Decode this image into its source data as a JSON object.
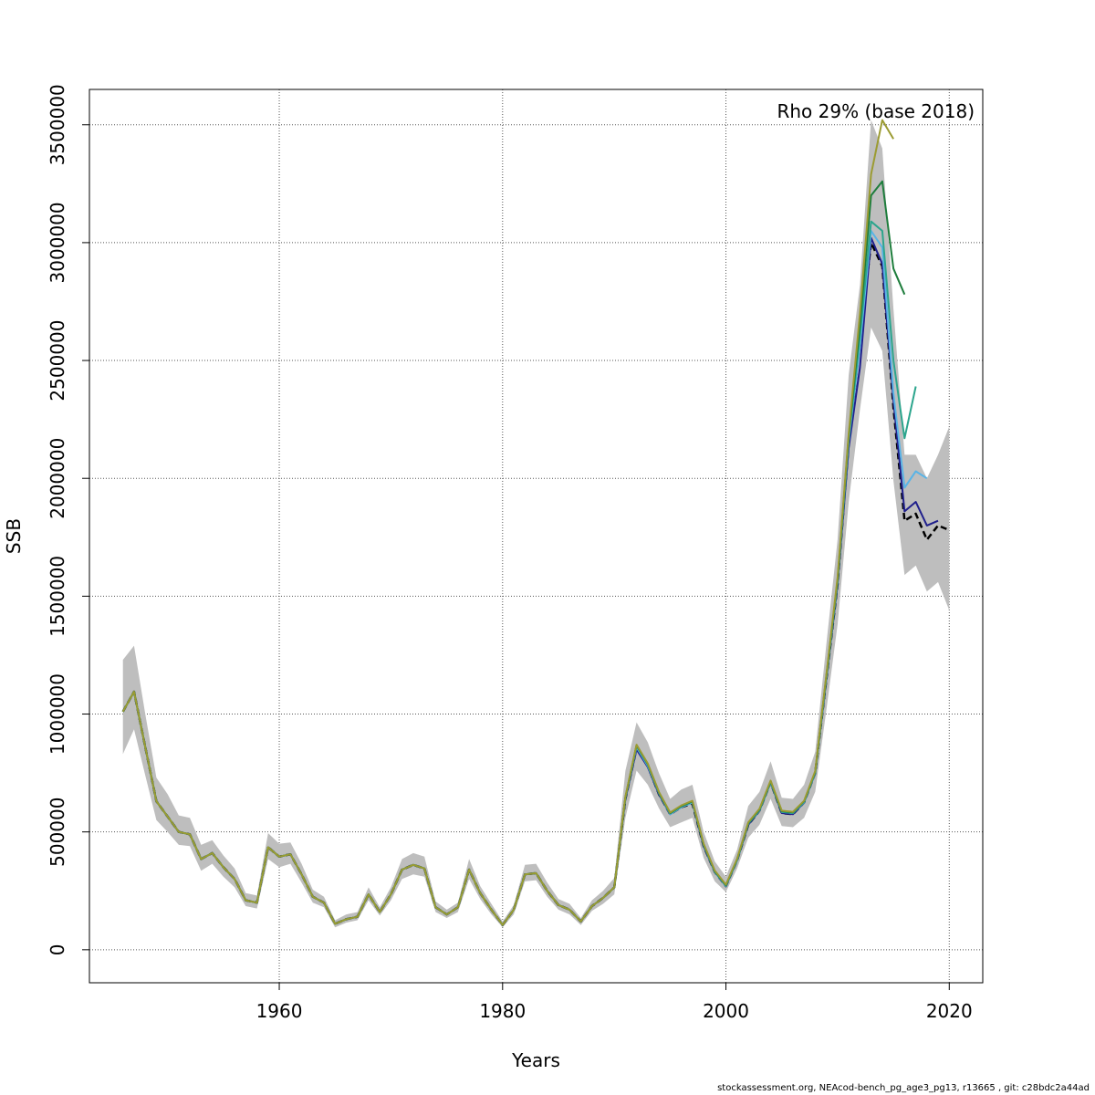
{
  "chart_data": {
    "type": "line",
    "title": "",
    "xlabel": "Years",
    "ylabel": "SSB",
    "annotation": "Rho 29% (base 2018)",
    "xlim": [
      1943,
      2023
    ],
    "ylim": [
      -140000,
      3650000
    ],
    "x_ticks": [
      1960,
      1980,
      2000,
      2020
    ],
    "y_ticks": [
      0,
      500000,
      1000000,
      1500000,
      2000000,
      2500000,
      3000000,
      3500000
    ],
    "grid": true,
    "colors": {
      "band": "#bebebe",
      "base": "#000000",
      "peels": [
        "#1f1f8c",
        "#5ab4e6",
        "#2ca58d",
        "#1e7d3c",
        "#9b9b32"
      ]
    },
    "series": [
      {
        "x": [
          1946,
          1947,
          1948,
          1949,
          1950,
          1951,
          1952,
          1953,
          1954,
          1955,
          1956,
          1957,
          1958,
          1959,
          1960,
          1961,
          1962,
          1963,
          1964,
          1965,
          1966,
          1967,
          1968,
          1969,
          1970,
          1971,
          1972,
          1973,
          1974,
          1975,
          1976,
          1977,
          1978,
          1979,
          1980,
          1981,
          1982,
          1983,
          1984,
          1985,
          1986,
          1987,
          1988,
          1989,
          1990,
          1991,
          1992,
          1993,
          1994,
          1995,
          1996,
          1997,
          1998,
          1999,
          2000,
          2001,
          2002,
          2003,
          2004,
          2005,
          2006,
          2007,
          2008,
          2009,
          2010,
          2011,
          2012,
          2013,
          2014,
          2015,
          2016,
          2017,
          2018,
          2019,
          2020
        ],
        "values": [
          1010000,
          1095000,
          860000,
          630000,
          565000,
          500000,
          490000,
          385000,
          410000,
          350000,
          300000,
          210000,
          200000,
          435000,
          395000,
          405000,
          320000,
          225000,
          200000,
          110000,
          130000,
          140000,
          235000,
          160000,
          235000,
          340000,
          360000,
          345000,
          180000,
          150000,
          180000,
          340000,
          240000,
          170000,
          105000,
          170000,
          320000,
          325000,
          250000,
          190000,
          170000,
          120000,
          185000,
          220000,
          265000,
          640000,
          855000,
          780000,
          660000,
          575000,
          605000,
          620000,
          440000,
          330000,
          270000,
          380000,
          530000,
          590000,
          710000,
          580000,
          575000,
          625000,
          750000,
          1150000,
          1550000,
          2150000,
          2580000,
          3000000,
          2900000,
          2300000,
          1820000,
          1850000,
          1740000,
          1800000,
          1780000
        ]
      },
      {
        "x": [
          1946,
          1947,
          1948,
          1949,
          1950,
          1951,
          1952,
          1953,
          1954,
          1955,
          1956,
          1957,
          1958,
          1959,
          1960,
          1961,
          1962,
          1963,
          1964,
          1965,
          1966,
          1967,
          1968,
          1969,
          1970,
          1971,
          1972,
          1973,
          1974,
          1975,
          1976,
          1977,
          1978,
          1979,
          1980,
          1981,
          1982,
          1983,
          1984,
          1985,
          1986,
          1987,
          1988,
          1989,
          1990,
          1991,
          1992,
          1993,
          1994,
          1995,
          1996,
          1997,
          1998,
          1999,
          2000,
          2001,
          2002,
          2003,
          2004,
          2005,
          2006,
          2007,
          2008,
          2009,
          2010,
          2011,
          2012,
          2013,
          2014,
          2015,
          2016,
          2017,
          2018,
          2019
        ],
        "values": [
          1010000,
          1095000,
          860000,
          630000,
          565000,
          500000,
          490000,
          385000,
          410000,
          350000,
          300000,
          210000,
          200000,
          435000,
          395000,
          405000,
          320000,
          225000,
          200000,
          110000,
          130000,
          140000,
          235000,
          160000,
          235000,
          340000,
          360000,
          345000,
          180000,
          150000,
          180000,
          340000,
          240000,
          170000,
          105000,
          170000,
          320000,
          325000,
          250000,
          190000,
          170000,
          120000,
          185000,
          220000,
          265000,
          640000,
          850000,
          775000,
          660000,
          575000,
          605000,
          625000,
          440000,
          330000,
          270000,
          380000,
          530000,
          590000,
          710000,
          580000,
          575000,
          625000,
          750000,
          1150000,
          1550000,
          2130000,
          2470000,
          3020000,
          2910000,
          2330000,
          1860000,
          1900000,
          1800000,
          1820000
        ]
      },
      {
        "x": [
          1946,
          1947,
          1948,
          1949,
          1950,
          1951,
          1952,
          1953,
          1954,
          1955,
          1956,
          1957,
          1958,
          1959,
          1960,
          1961,
          1962,
          1963,
          1964,
          1965,
          1966,
          1967,
          1968,
          1969,
          1970,
          1971,
          1972,
          1973,
          1974,
          1975,
          1976,
          1977,
          1978,
          1979,
          1980,
          1981,
          1982,
          1983,
          1984,
          1985,
          1986,
          1987,
          1988,
          1989,
          1990,
          1991,
          1992,
          1993,
          1994,
          1995,
          1996,
          1997,
          1998,
          1999,
          2000,
          2001,
          2002,
          2003,
          2004,
          2005,
          2006,
          2007,
          2008,
          2009,
          2010,
          2011,
          2012,
          2013,
          2014,
          2015,
          2016,
          2017,
          2018
        ],
        "values": [
          1010000,
          1095000,
          860000,
          630000,
          565000,
          500000,
          490000,
          385000,
          410000,
          350000,
          300000,
          210000,
          200000,
          435000,
          395000,
          405000,
          320000,
          225000,
          200000,
          110000,
          130000,
          140000,
          235000,
          160000,
          235000,
          340000,
          360000,
          345000,
          180000,
          150000,
          180000,
          340000,
          240000,
          170000,
          105000,
          170000,
          320000,
          325000,
          250000,
          190000,
          170000,
          120000,
          185000,
          220000,
          265000,
          645000,
          860000,
          780000,
          665000,
          575000,
          605000,
          625000,
          445000,
          330000,
          270000,
          380000,
          535000,
          590000,
          710000,
          585000,
          580000,
          625000,
          750000,
          1155000,
          1560000,
          2160000,
          2560000,
          3050000,
          2980000,
          2360000,
          1960000,
          2030000,
          2000000
        ]
      },
      {
        "x": [
          1946,
          1947,
          1948,
          1949,
          1950,
          1951,
          1952,
          1953,
          1954,
          1955,
          1956,
          1957,
          1958,
          1959,
          1960,
          1961,
          1962,
          1963,
          1964,
          1965,
          1966,
          1967,
          1968,
          1969,
          1970,
          1971,
          1972,
          1973,
          1974,
          1975,
          1976,
          1977,
          1978,
          1979,
          1980,
          1981,
          1982,
          1983,
          1984,
          1985,
          1986,
          1987,
          1988,
          1989,
          1990,
          1991,
          1992,
          1993,
          1994,
          1995,
          1996,
          1997,
          1998,
          1999,
          2000,
          2001,
          2002,
          2003,
          2004,
          2005,
          2006,
          2007,
          2008,
          2009,
          2010,
          2011,
          2012,
          2013,
          2014,
          2015,
          2016,
          2017
        ],
        "values": [
          1010000,
          1095000,
          860000,
          630000,
          565000,
          500000,
          490000,
          385000,
          410000,
          350000,
          300000,
          210000,
          200000,
          435000,
          395000,
          405000,
          320000,
          225000,
          200000,
          110000,
          130000,
          140000,
          235000,
          160000,
          235000,
          340000,
          360000,
          345000,
          180000,
          150000,
          180000,
          340000,
          240000,
          170000,
          105000,
          170000,
          320000,
          325000,
          250000,
          190000,
          170000,
          120000,
          185000,
          220000,
          265000,
          645000,
          865000,
          785000,
          665000,
          578000,
          608000,
          628000,
          445000,
          332000,
          272000,
          382000,
          535000,
          592000,
          712000,
          585000,
          580000,
          628000,
          752000,
          1160000,
          1565000,
          2170000,
          2600000,
          3090000,
          3050000,
          2500000,
          2170000,
          2390000
        ]
      },
      {
        "x": [
          1946,
          1947,
          1948,
          1949,
          1950,
          1951,
          1952,
          1953,
          1954,
          1955,
          1956,
          1957,
          1958,
          1959,
          1960,
          1961,
          1962,
          1963,
          1964,
          1965,
          1966,
          1967,
          1968,
          1969,
          1970,
          1971,
          1972,
          1973,
          1974,
          1975,
          1976,
          1977,
          1978,
          1979,
          1980,
          1981,
          1982,
          1983,
          1984,
          1985,
          1986,
          1987,
          1988,
          1989,
          1990,
          1991,
          1992,
          1993,
          1994,
          1995,
          1996,
          1997,
          1998,
          1999,
          2000,
          2001,
          2002,
          2003,
          2004,
          2005,
          2006,
          2007,
          2008,
          2009,
          2010,
          2011,
          2012,
          2013,
          2014,
          2015,
          2016
        ],
        "values": [
          1010000,
          1095000,
          860000,
          630000,
          565000,
          500000,
          490000,
          385000,
          410000,
          350000,
          300000,
          210000,
          200000,
          435000,
          395000,
          405000,
          320000,
          225000,
          200000,
          110000,
          130000,
          140000,
          235000,
          160000,
          235000,
          340000,
          360000,
          345000,
          180000,
          150000,
          180000,
          340000,
          240000,
          170000,
          105000,
          170000,
          320000,
          325000,
          250000,
          190000,
          170000,
          120000,
          185000,
          220000,
          265000,
          648000,
          868000,
          788000,
          668000,
          580000,
          610000,
          630000,
          448000,
          334000,
          274000,
          384000,
          538000,
          595000,
          715000,
          588000,
          583000,
          630000,
          755000,
          1165000,
          1570000,
          2180000,
          2650000,
          3200000,
          3260000,
          2890000,
          2780000
        ]
      },
      {
        "x": [
          1946,
          1947,
          1948,
          1949,
          1950,
          1951,
          1952,
          1953,
          1954,
          1955,
          1956,
          1957,
          1958,
          1959,
          1960,
          1961,
          1962,
          1963,
          1964,
          1965,
          1966,
          1967,
          1968,
          1969,
          1970,
          1971,
          1972,
          1973,
          1974,
          1975,
          1976,
          1977,
          1978,
          1979,
          1980,
          1981,
          1982,
          1983,
          1984,
          1985,
          1986,
          1987,
          1988,
          1989,
          1990,
          1991,
          1992,
          1993,
          1994,
          1995,
          1996,
          1997,
          1998,
          1999,
          2000,
          2001,
          2002,
          2003,
          2004,
          2005,
          2006,
          2007,
          2008,
          2009,
          2010,
          2011,
          2012,
          2013,
          2014,
          2015
        ],
        "values": [
          1010000,
          1095000,
          860000,
          630000,
          565000,
          500000,
          490000,
          385000,
          410000,
          350000,
          300000,
          210000,
          200000,
          435000,
          395000,
          405000,
          320000,
          225000,
          200000,
          110000,
          130000,
          140000,
          235000,
          160000,
          235000,
          340000,
          360000,
          345000,
          180000,
          150000,
          180000,
          340000,
          240000,
          170000,
          105000,
          170000,
          320000,
          325000,
          250000,
          190000,
          170000,
          120000,
          185000,
          220000,
          265000,
          650000,
          870000,
          790000,
          670000,
          582000,
          612000,
          632000,
          450000,
          336000,
          276000,
          386000,
          540000,
          598000,
          718000,
          590000,
          585000,
          632000,
          758000,
          1170000,
          1580000,
          2190000,
          2700000,
          3290000,
          3520000,
          3440000
        ]
      }
    ],
    "band": {
      "x": [
        1946,
        1947,
        1948,
        1949,
        1950,
        1951,
        1952,
        1953,
        1954,
        1955,
        1956,
        1957,
        1958,
        1959,
        1960,
        1961,
        1962,
        1963,
        1964,
        1965,
        1966,
        1967,
        1968,
        1969,
        1970,
        1971,
        1972,
        1973,
        1974,
        1975,
        1976,
        1977,
        1978,
        1979,
        1980,
        1981,
        1982,
        1983,
        1984,
        1985,
        1986,
        1987,
        1988,
        1989,
        1990,
        1991,
        1992,
        1993,
        1994,
        1995,
        1996,
        1997,
        1998,
        1999,
        2000,
        2001,
        2002,
        2003,
        2004,
        2005,
        2006,
        2007,
        2008,
        2009,
        2010,
        2011,
        2012,
        2013,
        2014,
        2015,
        2016,
        2017,
        2018,
        2019,
        2020
      ],
      "lower": [
        830000,
        935000,
        740000,
        550000,
        500000,
        445000,
        440000,
        335000,
        365000,
        310000,
        265000,
        185000,
        175000,
        385000,
        350000,
        365000,
        285000,
        200000,
        180000,
        95000,
        115000,
        125000,
        210000,
        145000,
        210000,
        300000,
        320000,
        310000,
        160000,
        135000,
        160000,
        300000,
        215000,
        150000,
        95000,
        150000,
        290000,
        295000,
        225000,
        170000,
        150000,
        105000,
        165000,
        195000,
        235000,
        560000,
        760000,
        700000,
        600000,
        520000,
        540000,
        560000,
        390000,
        290000,
        245000,
        345000,
        475000,
        530000,
        640000,
        525000,
        520000,
        560000,
        670000,
        1020000,
        1380000,
        1900000,
        2290000,
        2640000,
        2540000,
        1990000,
        1590000,
        1630000,
        1520000,
        1560000,
        1440000
      ],
      "upper": [
        1230000,
        1290000,
        1000000,
        730000,
        660000,
        570000,
        560000,
        445000,
        465000,
        400000,
        345000,
        240000,
        230000,
        495000,
        450000,
        455000,
        365000,
        255000,
        225000,
        125000,
        150000,
        160000,
        265000,
        180000,
        265000,
        385000,
        410000,
        395000,
        205000,
        170000,
        200000,
        385000,
        270000,
        195000,
        120000,
        190000,
        360000,
        365000,
        285000,
        215000,
        195000,
        135000,
        210000,
        250000,
        305000,
        760000,
        965000,
        880000,
        750000,
        640000,
        680000,
        700000,
        500000,
        375000,
        310000,
        425000,
        610000,
        670000,
        800000,
        645000,
        640000,
        700000,
        840000,
        1300000,
        1740000,
        2440000,
        2820000,
        3520000,
        3400000,
        2720000,
        2100000,
        2100000,
        2000000,
        2100000,
        2220000
      ]
    }
  },
  "footer": "stockassessment.org, NEAcod-bench_pg_age3_pg13, r13665 , git: c28bdc2a44ad"
}
